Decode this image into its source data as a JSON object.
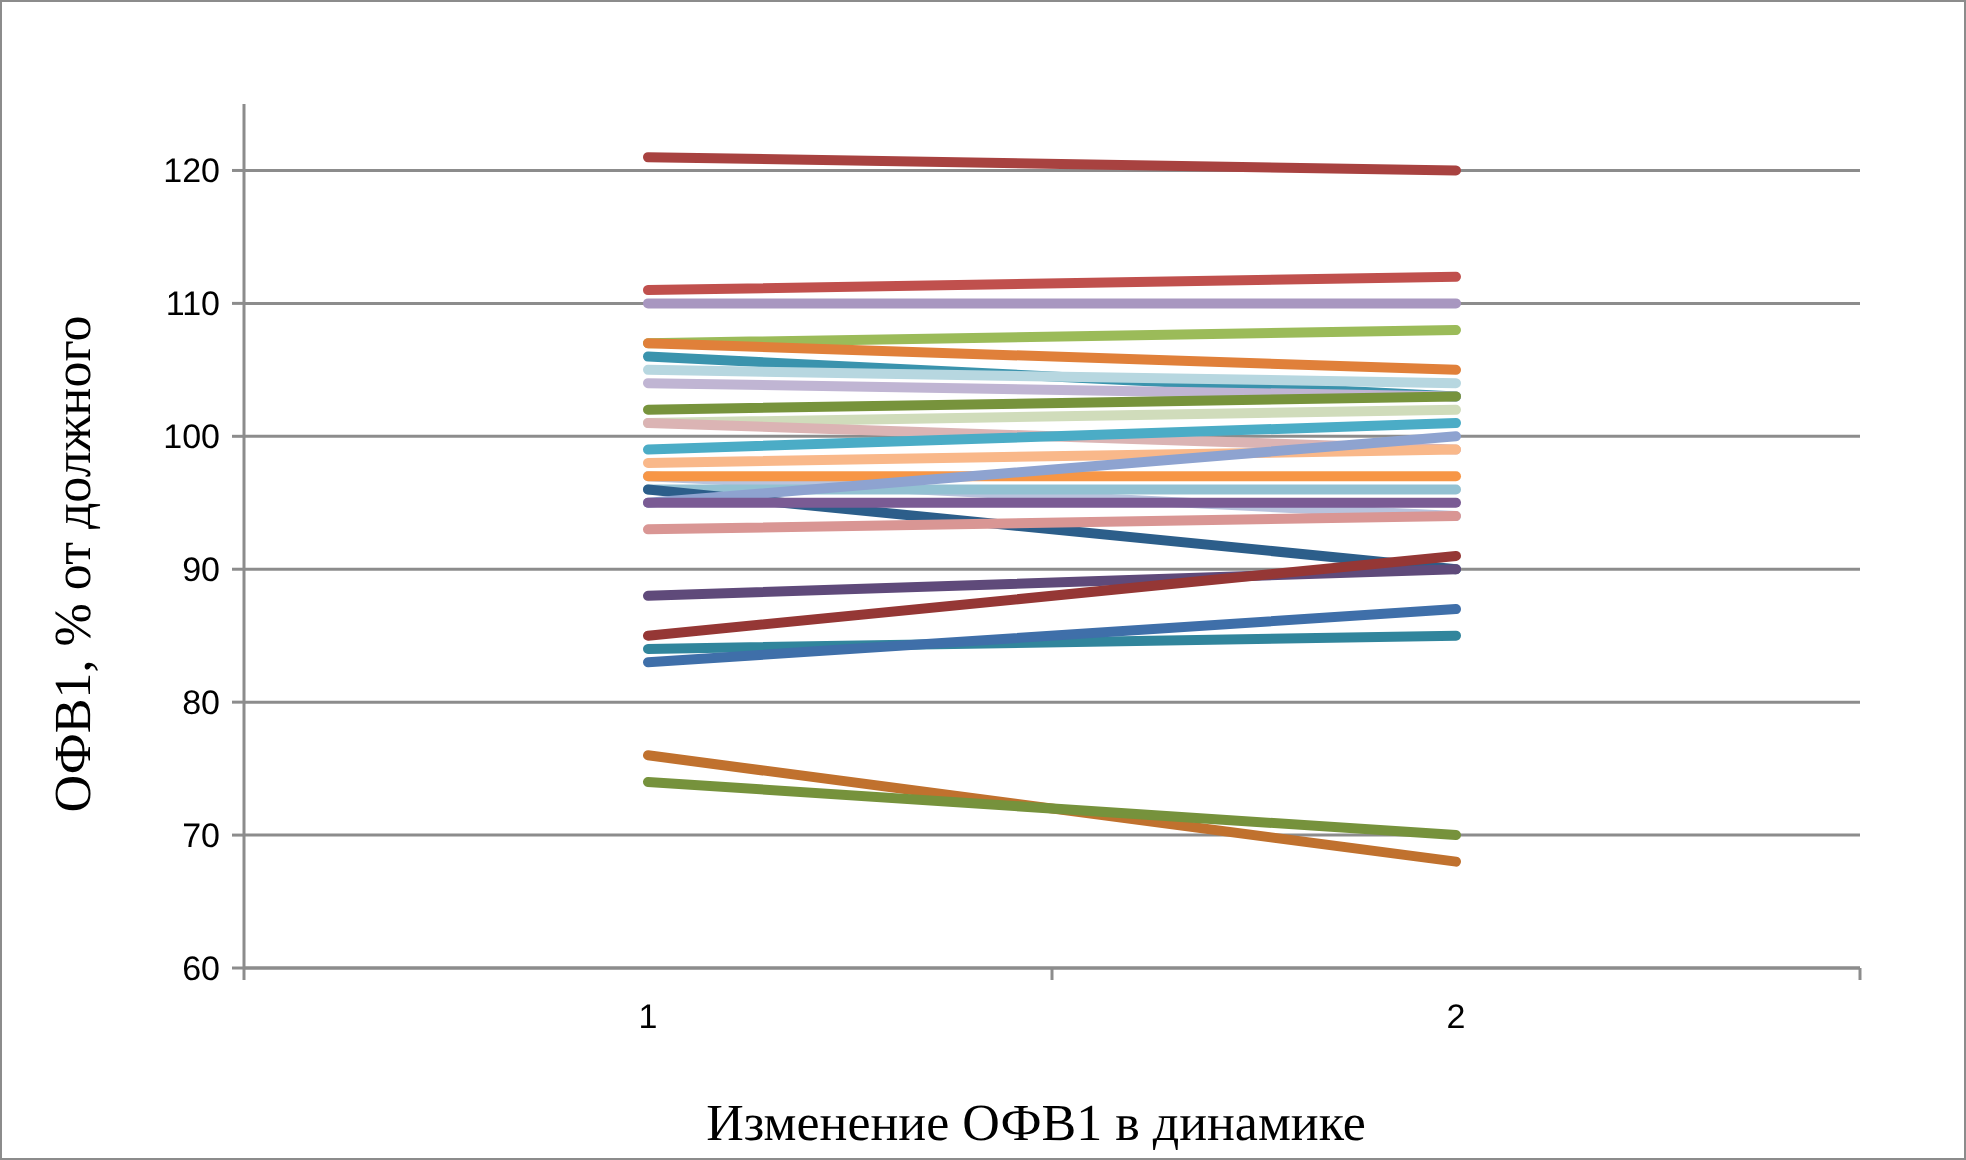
{
  "chart_data": {
    "type": "line",
    "xlabel": "Изменение ОФВ1 в динамике",
    "ylabel": "ОФВ1, % от должного",
    "categories": [
      "1",
      "2"
    ],
    "ylim": [
      60,
      125
    ],
    "yticks": [
      60,
      70,
      80,
      90,
      100,
      110,
      120
    ],
    "grid": "y",
    "marker": "none",
    "line_style": "solid",
    "series": [
      {
        "color": "#a84240",
        "values": [
          121,
          120
        ]
      },
      {
        "color": "#c0504d",
        "values": [
          111,
          112
        ]
      },
      {
        "color": "#a897c0",
        "values": [
          110,
          110
        ]
      },
      {
        "color": "#9bbb59",
        "values": [
          107,
          108
        ]
      },
      {
        "color": "#e0803a",
        "values": [
          107,
          105
        ]
      },
      {
        "color": "#3a93ad",
        "values": [
          106,
          103
        ]
      },
      {
        "color": "#b7d7e0",
        "values": [
          105,
          104
        ]
      },
      {
        "color": "#c0b5d3",
        "values": [
          104,
          103
        ]
      },
      {
        "color": "#77933c",
        "values": [
          102,
          103
        ]
      },
      {
        "color": "#d0dcbb",
        "values": [
          101,
          102
        ]
      },
      {
        "color": "#dbb4b4",
        "values": [
          101,
          99
        ]
      },
      {
        "color": "#4bacc6",
        "values": [
          99,
          101
        ]
      },
      {
        "color": "#f9b88a",
        "values": [
          98,
          99
        ]
      },
      {
        "color": "#b9c3dd",
        "values": [
          97,
          94
        ]
      },
      {
        "color": "#f79646",
        "values": [
          97,
          97
        ]
      },
      {
        "color": "#93c1d2",
        "values": [
          96,
          96
        ]
      },
      {
        "color": "#2c5e8a",
        "values": [
          96,
          90
        ]
      },
      {
        "color": "#8ea3d0",
        "values": [
          95,
          100
        ]
      },
      {
        "color": "#7a5b94",
        "values": [
          95,
          95
        ]
      },
      {
        "color": "#d99694",
        "values": [
          93,
          94
        ]
      },
      {
        "color": "#5f4a7a",
        "values": [
          88,
          90
        ]
      },
      {
        "color": "#953735",
        "values": [
          85,
          91
        ]
      },
      {
        "color": "#31859c",
        "values": [
          84,
          85
        ]
      },
      {
        "color": "#3f6fa9",
        "values": [
          83,
          87
        ]
      },
      {
        "color": "#c0712e",
        "values": [
          76,
          68
        ]
      },
      {
        "color": "#76923c",
        "values": [
          74,
          70
        ]
      }
    ]
  }
}
